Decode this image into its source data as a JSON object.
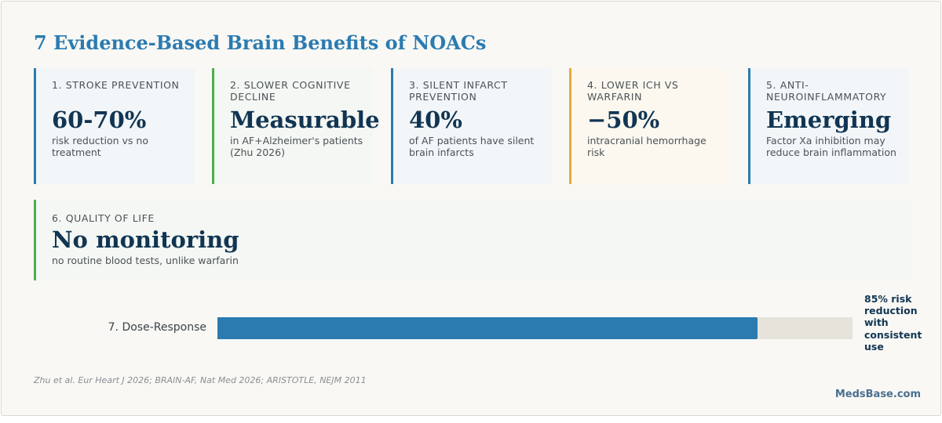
{
  "title": "7 Evidence-Based Brain Benefits of NOACs",
  "cards": [
    {
      "label": "1. STROKE PREVENTION",
      "value": "60-70%",
      "desc": "risk reduction vs no treatment",
      "color": "#2b7bb1"
    },
    {
      "label": "2. SLOWER COGNITIVE DECLINE",
      "value": "Measurable",
      "desc": "in AF+Alzheimer's patients (Zhu 2026)",
      "color": "#4caf50"
    },
    {
      "label": "3. SILENT INFARCT PREVENTION",
      "value": "40%",
      "desc": "of AF patients have silent brain infarcts",
      "color": "#2b7bb1"
    },
    {
      "label": "4. LOWER ICH VS WARFARIN",
      "value": "−50%",
      "desc": "intracranial hemorrhage risk",
      "color": "#e9a93a"
    },
    {
      "label": "5. ANTI-NEUROINFLAMMATORY",
      "value": "Emerging",
      "desc": "Factor Xa inhibition may reduce brain inflammation",
      "color": "#2b7bb1"
    }
  ],
  "quality": {
    "label": "6. QUALITY OF LIFE",
    "value": "No monitoring",
    "desc": "no routine blood tests, unlike warfarin",
    "color": "#4caf50"
  },
  "dose_response": {
    "label": "7. Dose-Response",
    "percent": 85,
    "note": "85% risk reduction with consistent use",
    "color": "#2b7bb1"
  },
  "source": "Zhu et al. Eur Heart J 2026; BRAIN-AF, Nat Med 2026; ARISTOTLE, NEJM 2011",
  "brand": "MedsBase.com"
}
